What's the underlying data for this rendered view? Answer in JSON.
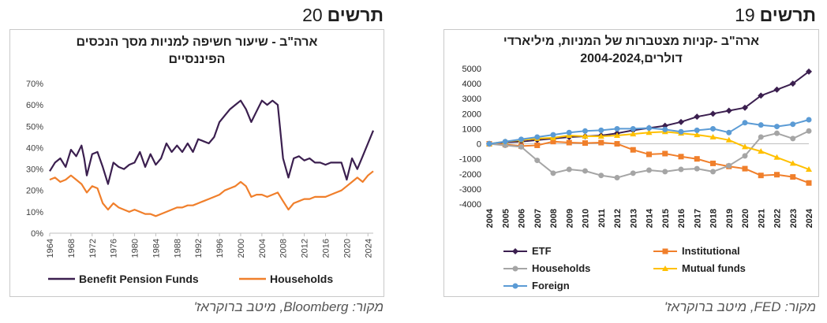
{
  "left": {
    "heading": {
      "label": "תרשים",
      "number": "20"
    },
    "source": "מקור: Bloomberg, מיטב ברוקראז'",
    "chart_data": {
      "type": "line",
      "title_line1": "ארה\"ב - שיעור חשיפה למניות מסך הנכסים",
      "title_line2": "הפיננסיים",
      "x_ticks": [
        "1964",
        "1968",
        "1972",
        "1976",
        "1980",
        "1984",
        "1988",
        "1992",
        "1996",
        "2000",
        "2004",
        "2008",
        "2012",
        "2016",
        "2020",
        "2024"
      ],
      "y_ticks": [
        "0%",
        "10%",
        "20%",
        "30%",
        "40%",
        "50%",
        "60%",
        "70%"
      ],
      "ylim": [
        0,
        70
      ],
      "xlim": [
        1964,
        2025
      ],
      "legend_position": "bottom",
      "series": [
        {
          "name": "Benefit Pension Funds",
          "color": "#3b1f4f",
          "x": [
            1964,
            1965,
            1966,
            1967,
            1968,
            1969,
            1970,
            1970.5,
            1971,
            1972,
            1973,
            1974,
            1975,
            1976,
            1977,
            1978,
            1979,
            1980,
            1981,
            1982,
            1983,
            1984,
            1985,
            1986,
            1987,
            1988,
            1989,
            1990,
            1991,
            1992,
            1993,
            1994,
            1995,
            1996,
            1997,
            1998,
            1999,
            2000,
            2001,
            2002,
            2003,
            2004,
            2005,
            2006,
            2007,
            2008,
            2009,
            2010,
            2011,
            2012,
            2013,
            2014,
            2015,
            2016,
            2017,
            2018,
            2019,
            2020,
            2021,
            2022,
            2023,
            2024,
            2025
          ],
          "y": [
            29,
            33,
            35,
            31,
            39,
            36,
            41,
            35,
            27,
            37,
            38,
            31,
            23,
            33,
            31,
            30,
            32,
            33,
            38,
            31,
            37,
            32,
            35,
            42,
            38,
            41,
            38,
            42,
            38,
            44,
            43,
            42,
            45,
            52,
            55,
            58,
            60,
            62,
            58,
            52,
            57,
            62,
            60,
            62,
            60,
            35,
            26,
            35,
            36,
            34,
            35,
            33,
            33,
            32,
            33,
            33,
            33,
            25,
            35,
            30,
            36,
            42,
            48
          ]
        },
        {
          "name": "Households",
          "color": "#f07f2b",
          "x": [
            1964,
            1965,
            1966,
            1967,
            1968,
            1969,
            1970,
            1971,
            1972,
            1973,
            1974,
            1975,
            1976,
            1977,
            1978,
            1979,
            1980,
            1981,
            1982,
            1983,
            1984,
            1985,
            1986,
            1987,
            1988,
            1989,
            1990,
            1991,
            1992,
            1993,
            1994,
            1995,
            1996,
            1997,
            1998,
            1999,
            2000,
            2001,
            2002,
            2003,
            2004,
            2005,
            2006,
            2007,
            2008,
            2009,
            2010,
            2011,
            2012,
            2013,
            2014,
            2015,
            2016,
            2017,
            2018,
            2019,
            2020,
            2021,
            2022,
            2023,
            2024,
            2025
          ],
          "y": [
            25,
            26,
            24,
            25,
            27,
            25,
            23,
            19,
            22,
            21,
            14,
            11,
            14,
            12,
            11,
            10,
            11,
            10,
            9,
            9,
            8,
            9,
            10,
            11,
            12,
            12,
            13,
            13,
            14,
            15,
            16,
            17,
            18,
            20,
            21,
            22,
            24,
            22,
            17,
            18,
            18,
            17,
            18,
            19,
            15,
            11,
            14,
            15,
            16,
            16,
            17,
            17,
            17,
            18,
            19,
            20,
            22,
            24,
            26,
            24,
            27,
            29
          ]
        }
      ]
    }
  },
  "right": {
    "heading": {
      "label": "תרשים",
      "number": "19"
    },
    "source": "מקור: FED, מיטב ברוקראז'",
    "chart_data": {
      "type": "line",
      "title_line1": "ארה\"ב -קניות מצטברות של המניות, מיליארדי",
      "title_line2": "דולרים,2004-2024",
      "categories": [
        "2004",
        "2005",
        "2006",
        "2007",
        "2008",
        "2009",
        "2010",
        "2011",
        "2012",
        "2013",
        "2014",
        "2015",
        "2016",
        "2017",
        "2018",
        "2019",
        "2020",
        "2021",
        "2022",
        "2023",
        "2024"
      ],
      "y_ticks": [
        "5000",
        "4000",
        "3000",
        "2000",
        "1000",
        "0",
        "-1000",
        "-2000",
        "-3000",
        "-4000"
      ],
      "ylim": [
        -4000,
        5000
      ],
      "legend_position": "bottom",
      "series": [
        {
          "name": "ETF",
          "color": "#3b1f4f",
          "marker": "diamond",
          "values": [
            0,
            100,
            150,
            250,
            350,
            450,
            500,
            550,
            700,
            900,
            1050,
            1200,
            1450,
            1800,
            2000,
            2200,
            2400,
            3200,
            3600,
            4000,
            4800
          ]
        },
        {
          "name": "Institutional",
          "color": "#f07f2b",
          "marker": "square",
          "values": [
            0,
            -50,
            -150,
            -100,
            150,
            80,
            50,
            80,
            0,
            -400,
            -700,
            -650,
            -850,
            -1000,
            -1300,
            -1500,
            -1650,
            -2100,
            -2050,
            -2200,
            -2600
          ]
        },
        {
          "name": "Households",
          "color": "#a5a5a5",
          "marker": "circle",
          "values": [
            0,
            -100,
            -200,
            -1100,
            -1950,
            -1700,
            -1800,
            -2100,
            -2250,
            -1950,
            -1750,
            -1850,
            -1700,
            -1650,
            -1850,
            -1450,
            -800,
            450,
            700,
            350,
            850
          ]
        },
        {
          "name": "Mutual funds",
          "color": "#ffc000",
          "marker": "triangle",
          "values": [
            0,
            150,
            250,
            350,
            400,
            550,
            500,
            500,
            550,
            650,
            750,
            800,
            700,
            600,
            450,
            250,
            -200,
            -500,
            -900,
            -1300,
            -1700
          ]
        },
        {
          "name": "Foreign",
          "color": "#5b9bd5",
          "marker": "circle",
          "values": [
            0,
            150,
            300,
            450,
            600,
            750,
            850,
            900,
            1000,
            1000,
            1050,
            950,
            800,
            900,
            1000,
            750,
            1400,
            1250,
            1150,
            1300,
            1600
          ]
        }
      ]
    }
  }
}
